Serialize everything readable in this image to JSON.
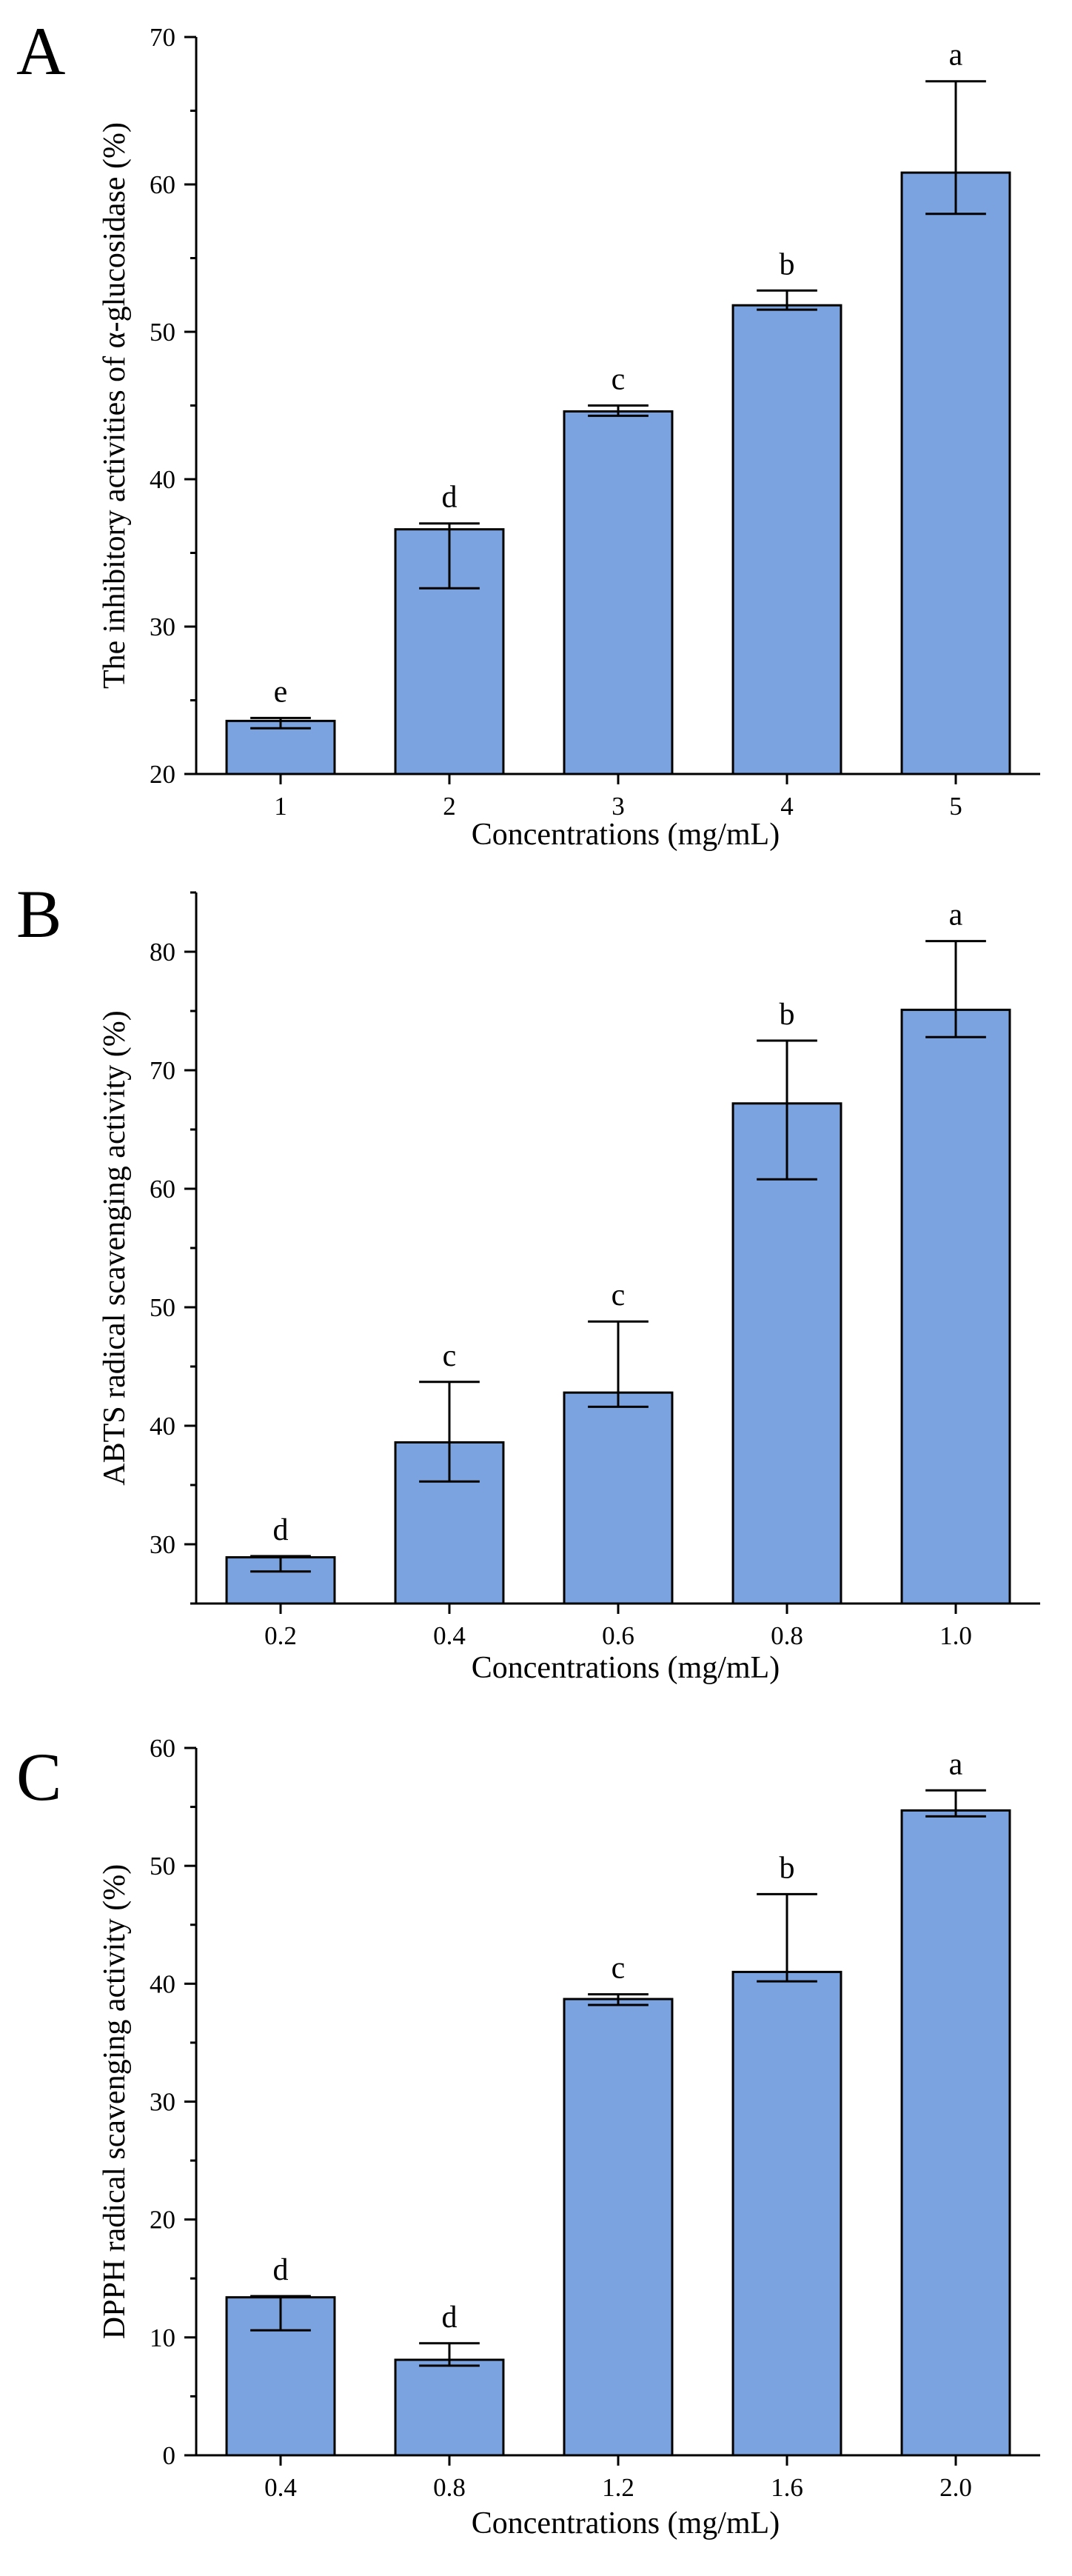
{
  "chart_data": [
    {
      "panel": "A",
      "type": "bar",
      "categories": [
        "1",
        "2",
        "3",
        "4",
        "5"
      ],
      "values": [
        23.6,
        36.6,
        44.6,
        51.8,
        60.8
      ],
      "err_low": [
        0.5,
        4.0,
        0.3,
        0.3,
        2.8
      ],
      "err_high": [
        0.2,
        0.4,
        0.4,
        1.0,
        6.2
      ],
      "labels": [
        "e",
        "d",
        "c",
        "b",
        "a"
      ],
      "xlabel": "Concentrations (mg/mL)",
      "ylabel": "The inhibitory activities of α-glucosidase (%)",
      "ylim": [
        20,
        70
      ],
      "yticks": [
        20,
        30,
        40,
        50,
        60,
        70
      ],
      "grid": false
    },
    {
      "panel": "B",
      "type": "bar",
      "categories": [
        "0.2",
        "0.4",
        "0.6",
        "0.8",
        "1.0"
      ],
      "values": [
        28.9,
        38.6,
        42.8,
        67.2,
        75.1
      ],
      "err_low": [
        1.2,
        3.3,
        1.2,
        6.4,
        2.3
      ],
      "err_high": [
        0.1,
        5.1,
        6.0,
        5.3,
        5.8
      ],
      "labels": [
        "d",
        "c",
        "c",
        "b",
        "a"
      ],
      "xlabel": "Concentrations (mg/mL)",
      "ylabel": "ABTS radical scavenging activity (%)",
      "ylim": [
        25,
        85
      ],
      "yticks": [
        30,
        40,
        50,
        60,
        70,
        80
      ],
      "grid": false
    },
    {
      "panel": "C",
      "type": "bar",
      "categories": [
        "0.4",
        "0.8",
        "1.2",
        "1.6",
        "2.0"
      ],
      "values": [
        13.4,
        8.1,
        38.7,
        41.0,
        54.7
      ],
      "err_low": [
        2.8,
        0.5,
        0.5,
        0.8,
        0.5
      ],
      "err_high": [
        0.1,
        1.4,
        0.4,
        6.6,
        1.7
      ],
      "labels": [
        "d",
        "d",
        "c",
        "b",
        "a"
      ],
      "xlabel": "Concentrations (mg/mL)",
      "ylabel": "DPPH radical scavenging activity (%)",
      "ylim": [
        0,
        60
      ],
      "yticks": [
        0,
        10,
        20,
        30,
        40,
        50,
        60
      ],
      "grid": false
    }
  ]
}
